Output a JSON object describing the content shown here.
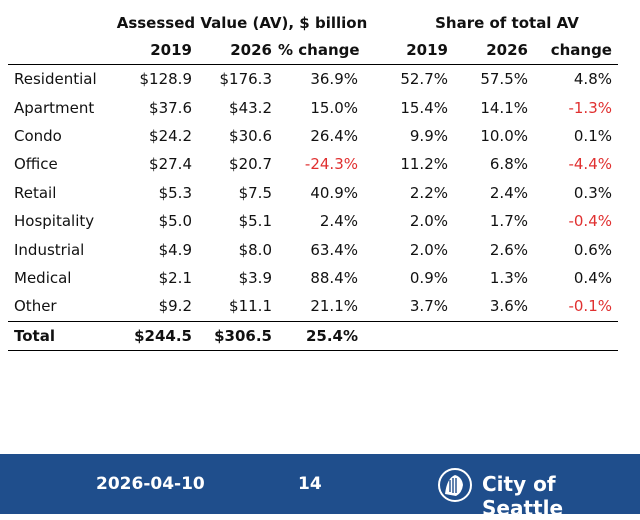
{
  "headers": {
    "group_av": "Assessed Value (AV), $ billion",
    "group_share": "Share of total AV",
    "columns": [
      "",
      "2019",
      "2026",
      "% change",
      "2019",
      "2026",
      "change"
    ]
  },
  "rows": [
    {
      "cat": "Residential",
      "av2019": "$128.9",
      "av2026": "$176.3",
      "pct": "36.9%",
      "s2019": "52.7%",
      "s2026": "57.5%",
      "chg": "4.8%"
    },
    {
      "cat": "Apartment",
      "av2019": "$37.6",
      "av2026": "$43.2",
      "pct": "15.0%",
      "s2019": "15.4%",
      "s2026": "14.1%",
      "chg": "-1.3%"
    },
    {
      "cat": "Condo",
      "av2019": "$24.2",
      "av2026": "$30.6",
      "pct": "26.4%",
      "s2019": "9.9%",
      "s2026": "10.0%",
      "chg": "0.1%"
    },
    {
      "cat": "Office",
      "av2019": "$27.4",
      "av2026": "$20.7",
      "pct": "-24.3%",
      "s2019": "11.2%",
      "s2026": "6.8%",
      "chg": "-4.4%"
    },
    {
      "cat": "Retail",
      "av2019": "$5.3",
      "av2026": "$7.5",
      "pct": "40.9%",
      "s2019": "2.2%",
      "s2026": "2.4%",
      "chg": "0.3%"
    },
    {
      "cat": "Hospitality",
      "av2019": "$5.0",
      "av2026": "$5.1",
      "pct": "2.4%",
      "s2019": "2.0%",
      "s2026": "1.7%",
      "chg": "-0.4%"
    },
    {
      "cat": "Industrial",
      "av2019": "$4.9",
      "av2026": "$8.0",
      "pct": "63.4%",
      "s2019": "2.0%",
      "s2026": "2.6%",
      "chg": "0.6%"
    },
    {
      "cat": "Medical",
      "av2019": "$2.1",
      "av2026": "$3.9",
      "pct": "88.4%",
      "s2019": "0.9%",
      "s2026": "1.3%",
      "chg": "0.4%"
    },
    {
      "cat": "Other",
      "av2019": "$9.2",
      "av2026": "$11.1",
      "pct": "21.1%",
      "s2019": "3.7%",
      "s2026": "3.6%",
      "chg": "-0.1%"
    }
  ],
  "total": {
    "cat": "Total",
    "av2019": "$244.5",
    "av2026": "$306.5",
    "pct": "25.4%"
  },
  "colors": {
    "negative": "#e03030",
    "footer_bg": "#1f4e8c"
  },
  "footer": {
    "date": "2026-04-10",
    "page": "14",
    "org": "City of Seattle",
    "logo_icon": "seattle-seal-icon"
  }
}
